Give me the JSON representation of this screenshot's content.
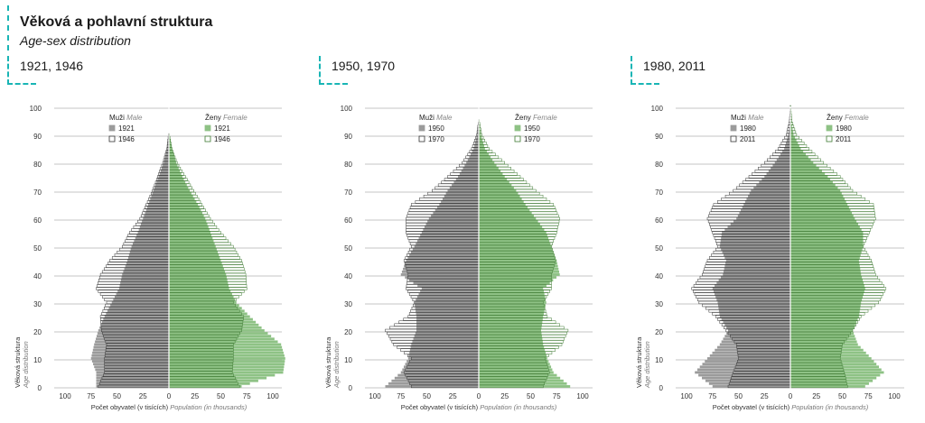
{
  "header": {
    "title": "Věková a pohlavní struktura",
    "subtitle": "Age-sex distribution"
  },
  "legend_labels": {
    "male_cz": "Muži",
    "male_en": "Male",
    "female_cz": "Ženy",
    "female_en": "Female"
  },
  "axis": {
    "y_label_cz": "Věková struktura",
    "y_label_en": "Age distribution",
    "x_label_cz": "Počet obyvatel (v tisících)",
    "x_label_en": "Population (in thousands)"
  },
  "colors": {
    "male_filled": "#9b9b9b",
    "female_filled": "#8ec285",
    "female_outline": "#3f7a33",
    "male_outline": "#333333",
    "accent": "#19b5b5"
  },
  "chart_data": [
    {
      "type": "bar",
      "subtype": "population-pyramid",
      "title": "1921, 1946",
      "series": [
        {
          "name": "1921",
          "sex": "male",
          "style": "filled"
        },
        {
          "name": "1946",
          "sex": "male",
          "style": "outline"
        },
        {
          "name": "1921",
          "sex": "female",
          "style": "filled"
        },
        {
          "name": "1946",
          "sex": "female",
          "style": "outline"
        }
      ],
      "age_points": [
        0,
        5,
        10,
        15,
        20,
        25,
        30,
        35,
        40,
        45,
        50,
        55,
        60,
        65,
        70,
        75,
        80,
        85,
        90
      ],
      "male_filled": [
        70,
        70,
        75,
        72,
        68,
        62,
        55,
        48,
        45,
        40,
        36,
        30,
        25,
        20,
        15,
        10,
        5,
        2,
        0.5
      ],
      "male_outline": [
        68,
        62,
        62,
        60,
        65,
        66,
        60,
        70,
        66,
        57,
        45,
        38,
        28,
        22,
        16,
        11,
        6,
        2,
        0.5
      ],
      "female_filled": [
        70,
        110,
        112,
        108,
        92,
        78,
        65,
        58,
        55,
        50,
        45,
        40,
        35,
        28,
        20,
        13,
        7,
        3,
        0.5
      ],
      "female_outline": [
        68,
        61,
        62,
        62,
        70,
        72,
        62,
        75,
        74,
        70,
        62,
        50,
        40,
        32,
        24,
        16,
        8,
        3,
        0.5
      ],
      "x_ticks": [
        100,
        75,
        50,
        25,
        0,
        25,
        50,
        75,
        100
      ],
      "y_ticks": [
        0,
        10,
        20,
        30,
        40,
        50,
        60,
        70,
        80,
        90,
        100
      ],
      "ylim": [
        0,
        100
      ],
      "xlim": [
        -110,
        110
      ]
    },
    {
      "type": "bar",
      "subtype": "population-pyramid",
      "title": "1950, 1970",
      "series": [
        {
          "name": "1950",
          "sex": "male",
          "style": "filled"
        },
        {
          "name": "1970",
          "sex": "male",
          "style": "outline"
        },
        {
          "name": "1950",
          "sex": "female",
          "style": "filled"
        },
        {
          "name": "1970",
          "sex": "female",
          "style": "outline"
        }
      ],
      "age_points": [
        0,
        5,
        10,
        15,
        20,
        25,
        30,
        35,
        40,
        45,
        50,
        55,
        60,
        65,
        70,
        75,
        80,
        85,
        90,
        95
      ],
      "male_filled": [
        90,
        75,
        68,
        65,
        60,
        60,
        62,
        55,
        75,
        70,
        62,
        55,
        48,
        38,
        30,
        20,
        12,
        5,
        1.5,
        0.2
      ],
      "male_outline": [
        65,
        72,
        65,
        82,
        90,
        68,
        62,
        70,
        68,
        72,
        65,
        70,
        70,
        65,
        45,
        30,
        16,
        7,
        2,
        0.3
      ],
      "female_filled": [
        88,
        72,
        66,
        62,
        60,
        62,
        65,
        62,
        78,
        75,
        70,
        65,
        55,
        45,
        36,
        25,
        15,
        6,
        2,
        0.2
      ],
      "female_outline": [
        62,
        68,
        64,
        80,
        86,
        66,
        62,
        70,
        70,
        74,
        70,
        75,
        78,
        72,
        55,
        40,
        25,
        10,
        3,
        0.5
      ],
      "x_ticks": [
        100,
        75,
        50,
        25,
        0,
        25,
        50,
        75,
        100
      ],
      "y_ticks": [
        0,
        10,
        20,
        30,
        40,
        50,
        60,
        70,
        80,
        90,
        100
      ],
      "ylim": [
        0,
        100
      ],
      "xlim": [
        -110,
        110
      ]
    },
    {
      "type": "bar",
      "subtype": "population-pyramid",
      "title": "1980, 2011",
      "series": [
        {
          "name": "1980",
          "sex": "male",
          "style": "filled"
        },
        {
          "name": "2011",
          "sex": "male",
          "style": "outline"
        },
        {
          "name": "1980",
          "sex": "female",
          "style": "filled"
        },
        {
          "name": "2011",
          "sex": "female",
          "style": "outline"
        }
      ],
      "age_points": [
        0,
        5,
        10,
        15,
        20,
        25,
        30,
        35,
        40,
        45,
        50,
        55,
        60,
        65,
        70,
        75,
        80,
        85,
        90,
        95,
        100
      ],
      "male_filled": [
        75,
        92,
        80,
        68,
        60,
        68,
        70,
        75,
        65,
        62,
        68,
        66,
        52,
        45,
        38,
        25,
        15,
        6,
        2,
        0.5,
        0.1
      ],
      "male_outline": [
        60,
        55,
        50,
        52,
        62,
        72,
        88,
        95,
        85,
        80,
        70,
        75,
        80,
        74,
        55,
        40,
        25,
        12,
        4,
        1,
        0.2
      ],
      "female_filled": [
        72,
        90,
        78,
        65,
        60,
        66,
        68,
        72,
        68,
        66,
        70,
        70,
        62,
        55,
        48,
        36,
        22,
        10,
        3,
        0.7,
        0.1
      ],
      "female_outline": [
        55,
        52,
        48,
        50,
        60,
        68,
        85,
        92,
        82,
        78,
        70,
        76,
        82,
        80,
        60,
        48,
        32,
        18,
        6,
        1.5,
        0.3
      ],
      "x_ticks": [
        100,
        75,
        50,
        25,
        0,
        25,
        50,
        75,
        100
      ],
      "y_ticks": [
        0,
        10,
        20,
        30,
        40,
        50,
        60,
        70,
        80,
        90,
        100
      ],
      "ylim": [
        0,
        100
      ],
      "xlim": [
        -110,
        110
      ]
    }
  ]
}
